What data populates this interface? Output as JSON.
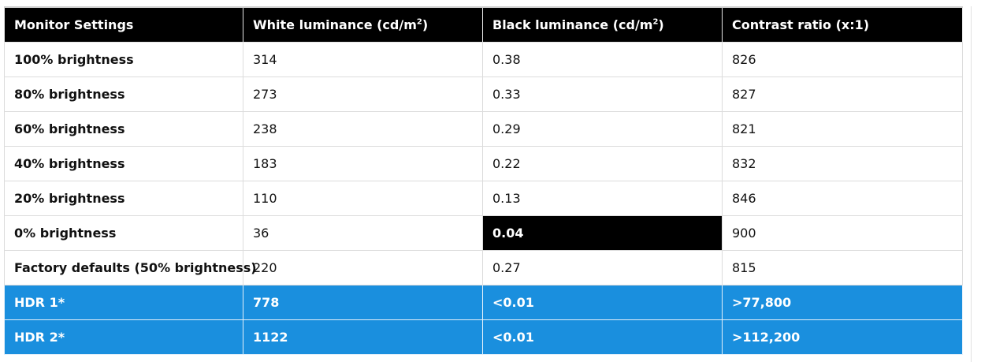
{
  "table": {
    "headers": [
      {
        "text": "Monitor Settings",
        "sup": ""
      },
      {
        "text": "White luminance (cd/m",
        "sup": "2",
        "tail": ")"
      },
      {
        "text": "Black luminance (cd/m",
        "sup": "2",
        "tail": ")"
      },
      {
        "text": "Contrast ratio (x:1)",
        "sup": ""
      }
    ],
    "rows": [
      {
        "setting": "100% brightness",
        "white": "314",
        "black": "0.38",
        "contrast": "826"
      },
      {
        "setting": "80% brightness",
        "white": "273",
        "black": "0.33",
        "contrast": "827"
      },
      {
        "setting": "60% brightness",
        "white": "238",
        "black": "0.29",
        "contrast": "821"
      },
      {
        "setting": "40% brightness",
        "white": "183",
        "black": "0.22",
        "contrast": "832"
      },
      {
        "setting": "20% brightness",
        "white": "110",
        "black": "0.13",
        "contrast": "846"
      },
      {
        "setting": "0% brightness",
        "white": "36",
        "black": "0.04",
        "contrast": "900"
      },
      {
        "setting": "Factory defaults (50% brightness)",
        "white": "220",
        "black": "0.27",
        "contrast": "815"
      }
    ],
    "hdr_rows": [
      {
        "setting": "HDR 1*",
        "white": "778",
        "black": "<0.01",
        "contrast": ">77,800"
      },
      {
        "setting": "HDR 2*",
        "white": "1122",
        "black": "<0.01",
        "contrast": ">112,200"
      }
    ]
  },
  "colors": {
    "header_bg": "#000000",
    "hdr_row_bg": "#1a8fde",
    "highlight_cell_bg": "#000000"
  }
}
